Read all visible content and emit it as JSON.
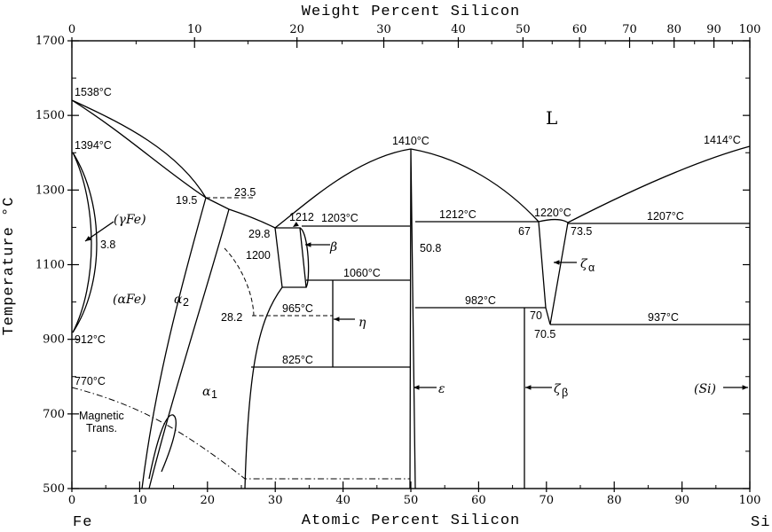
{
  "axes": {
    "top_title": "Weight Percent Silicon",
    "bottom_title": "Atomic Percent Silicon",
    "left_title": "Temperature °C",
    "left_end": "Fe",
    "right_end": "Si",
    "top_ticks": [
      "0",
      "10",
      "20",
      "30",
      "40",
      "50",
      "60",
      "70",
      "80",
      "90",
      "100"
    ],
    "bottom_ticks": [
      "0",
      "10",
      "20",
      "30",
      "40",
      "50",
      "60",
      "70",
      "80",
      "90",
      "100"
    ],
    "y_ticks": [
      "500",
      "700",
      "900",
      "1100",
      "1300",
      "1500",
      "1700"
    ]
  },
  "phases": {
    "liquid": "L",
    "gamma": "(γFe)",
    "alpha": "(αFe)",
    "alpha1": "α",
    "alpha1_sub": "1",
    "alpha2": "α",
    "alpha2_sub": "2",
    "beta": "β",
    "eta": "η",
    "epsilon": "ε",
    "zeta_alpha": "ζ",
    "zeta_alpha_sub": "α",
    "zeta_beta": "ζ",
    "zeta_beta_sub": "β",
    "si": "(Si)",
    "magnetic_1": "Magnetic",
    "magnetic_2": "Trans."
  },
  "labels": {
    "t1538": "1538°C",
    "t1394": "1394°C",
    "t912": "912°C",
    "t770": "770°C",
    "t1410": "1410°C",
    "t1414": "1414°C",
    "t1203": "1203°C",
    "t1212": "1212°C",
    "t1220": "1220°C",
    "t1207": "1207°C",
    "t1060": "1060°C",
    "t982": "982°C",
    "t965": "965°C",
    "t937": "937°C",
    "t825": "825°C",
    "v1212": "1212",
    "v1200": "1200",
    "c23_5": "23.5",
    "c19_5": "19.5",
    "c3_8": "3.8",
    "c29_8": "29.8",
    "c28_2": "28.2",
    "c50_8": "50.8",
    "c67": "67",
    "c73_5": "73.5",
    "c70": "70",
    "c70_5": "70.5"
  }
}
